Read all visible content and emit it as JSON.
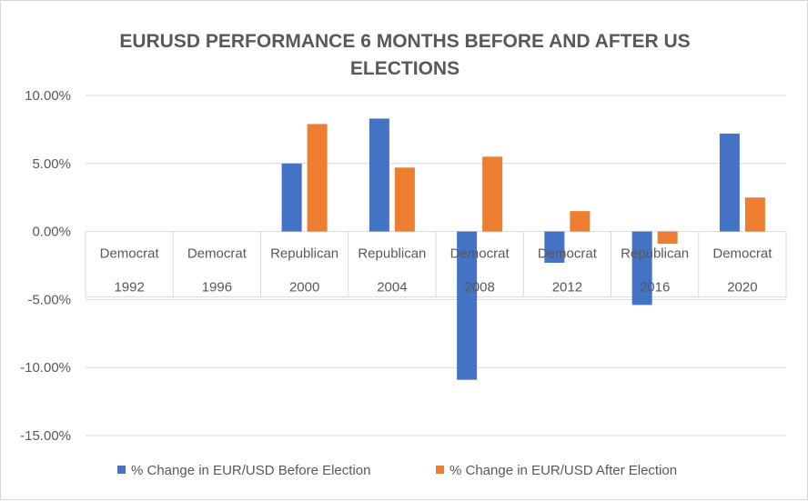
{
  "chart_data": {
    "type": "bar",
    "title": "EURUSD PERFORMANCE 6 MONTHS BEFORE AND AFTER US ELECTIONS",
    "title_lines": [
      "EURUSD PERFORMANCE 6 MONTHS BEFORE AND AFTER US",
      "ELECTIONS"
    ],
    "categories": [
      {
        "party": "Democrat",
        "year": "1992"
      },
      {
        "party": "Democrat",
        "year": "1996"
      },
      {
        "party": "Republican",
        "year": "2000"
      },
      {
        "party": "Republican",
        "year": "2004"
      },
      {
        "party": "Democrat",
        "year": "2008"
      },
      {
        "party": "Democrat",
        "year": "2012"
      },
      {
        "party": "Republican",
        "year": "2016"
      },
      {
        "party": "Democrat",
        "year": "2020"
      }
    ],
    "series": [
      {
        "name": "% Change in EUR/USD Before Election",
        "color": "#4472c4",
        "values": [
          null,
          null,
          5.0,
          8.3,
          -10.9,
          -2.3,
          -5.4,
          7.2
        ]
      },
      {
        "name": "% Change in EUR/USD After Election",
        "color": "#ed7d31",
        "values": [
          null,
          null,
          7.9,
          4.7,
          5.5,
          1.5,
          -0.9,
          2.5
        ]
      }
    ],
    "ylim": [
      -15,
      10
    ],
    "yticks": [
      10,
      5,
      0,
      -5,
      -10,
      -15
    ],
    "ytick_labels": [
      "10.00%",
      "5.00%",
      "0.00%",
      "-5.00%",
      "-10.00%",
      "-15.00%"
    ],
    "grid": true,
    "legend": "bottom"
  }
}
